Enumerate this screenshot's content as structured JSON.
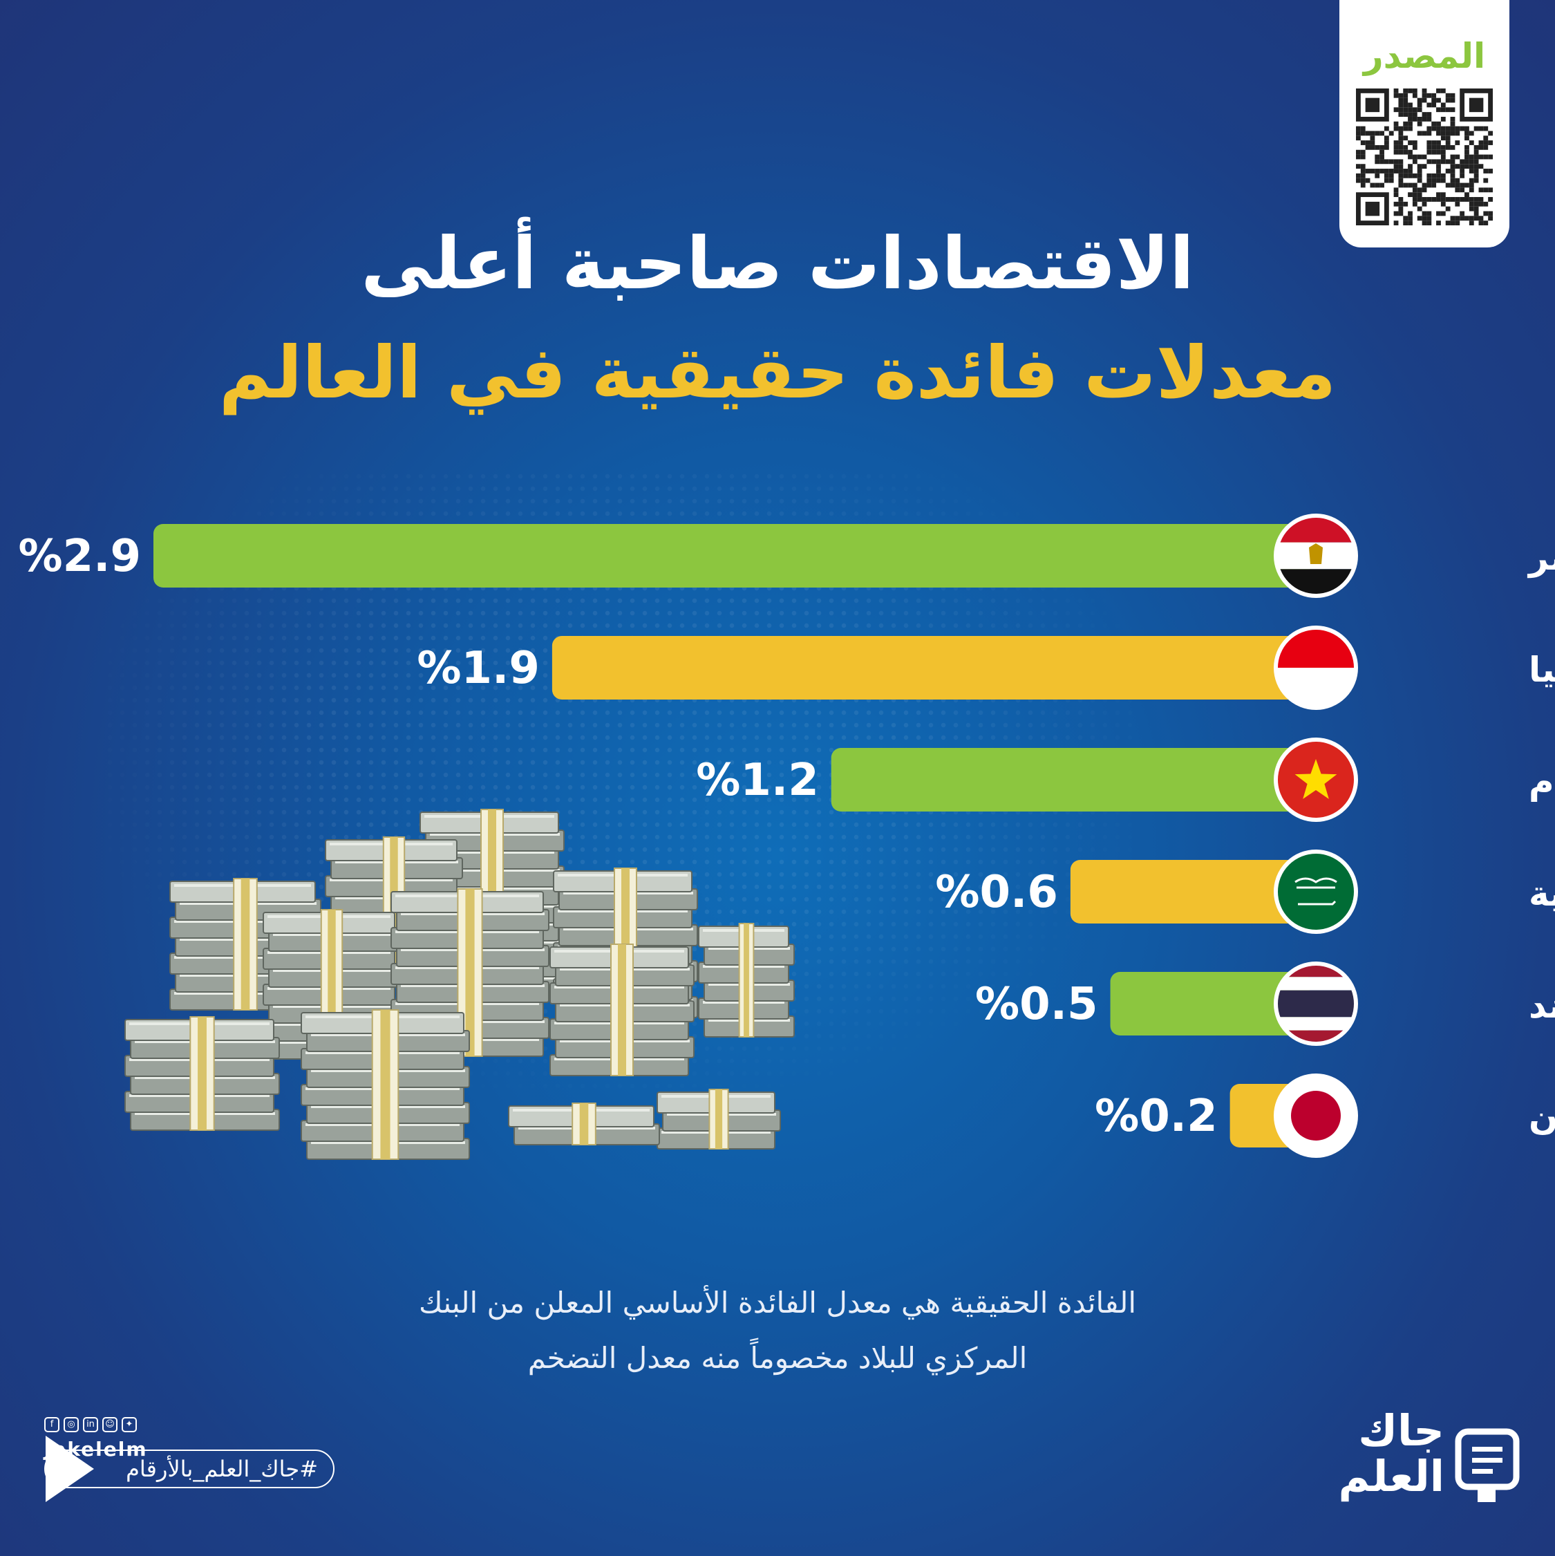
{
  "source": {
    "label": "المصدر"
  },
  "title": {
    "line1": "الاقتصادات صاحبة أعلى",
    "line2": "معدلات فائدة حقيقية في العالم"
  },
  "colors": {
    "green": "#8cc63f",
    "yellow": "#f2c12e",
    "title_accent": "#f2c12e",
    "background": "#1159a3"
  },
  "chart_data": {
    "type": "bar",
    "orientation": "horizontal",
    "direction": "right-to-left",
    "categories": [
      "مصر",
      "إندونيسيا",
      "فيتنام",
      "السعودية",
      "تايلاند",
      "اليابان"
    ],
    "values": [
      2.9,
      1.9,
      1.2,
      0.6,
      0.5,
      0.2
    ],
    "value_labels": [
      "%2.9",
      "%1.9",
      "%1.2",
      "%0.6",
      "%0.5",
      "%0.2"
    ],
    "bar_colors": [
      "#8cc63f",
      "#f2c12e",
      "#8cc63f",
      "#f2c12e",
      "#8cc63f",
      "#f2c12e"
    ],
    "flags": [
      "egypt-flag",
      "indonesia-flag",
      "vietnam-flag",
      "saudi-flag",
      "thailand-flag",
      "japan-flag"
    ],
    "xlim": [
      0,
      2.9
    ],
    "grid": false,
    "legend": "none"
  },
  "note": {
    "line1": "الفائدة الحقيقية هي معدل الفائدة الأساسي المعلن من البنك",
    "line2": "المركزي للبلاد مخصوماً منه معدل التضخم"
  },
  "footer": {
    "handle": "Jakelelm",
    "hashtag": "#جاك_العلم_بالأرقام",
    "brand_line1": "جاك",
    "brand_line2": "العلم"
  }
}
